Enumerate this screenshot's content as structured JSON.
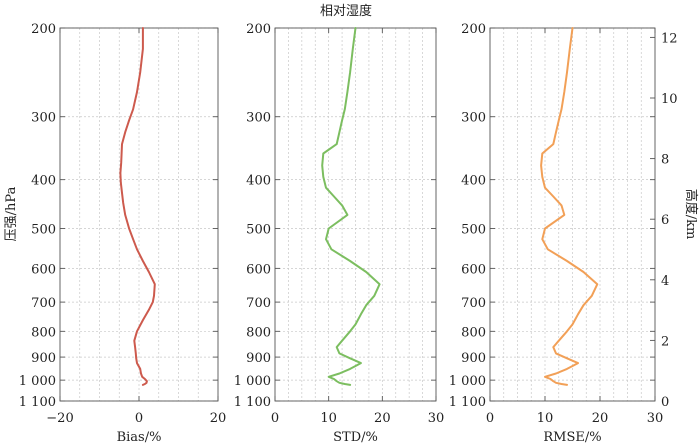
{
  "title": "相对湿度",
  "chart_data": [
    {
      "type": "line",
      "xlabel": "Bias/%",
      "ylabel": "压强/hPa",
      "xlim": [
        -20,
        20
      ],
      "xticks": [
        "−20",
        "0",
        "20"
      ],
      "yscale": "log",
      "ylim": [
        1100,
        200
      ],
      "yticks": [
        "200",
        "300",
        "400",
        "500",
        "600",
        "700",
        "800",
        "900",
        "1 000",
        "1 100"
      ],
      "grid": true,
      "color": "#cd5a4d",
      "series": [
        {
          "x": [
            1,
            1,
            0.3,
            -0.5,
            -1.5,
            -2.5,
            -3.5,
            -4.3,
            -4.4,
            -4.5,
            -4.7,
            -4.6,
            -4.3,
            -4.0,
            -3.5,
            -2.5,
            -1.5,
            -0.5,
            1,
            2.5,
            4,
            3.8,
            3.5,
            2.5,
            1,
            -0.5,
            -1.2,
            -1.0,
            -0.8,
            -0.7,
            -0.5,
            0.3,
            0.5,
            0.8,
            1.5,
            2.0,
            1.9,
            1.5,
            1.0
          ],
          "y": [
            200,
            220,
            245,
            268,
            290,
            305,
            322,
            340,
            355,
            370,
            388,
            405,
            425,
            445,
            470,
            500,
            525,
            550,
            580,
            610,
            645,
            680,
            700,
            725,
            760,
            800,
            835,
            860,
            885,
            905,
            925,
            950,
            970,
            985,
            995,
            1005,
            1012,
            1018,
            1022
          ]
        }
      ]
    },
    {
      "type": "line",
      "xlabel": "STD/%",
      "xlim": [
        0,
        30
      ],
      "xticks": [
        "0",
        "10",
        "20",
        "30"
      ],
      "yscale": "log",
      "ylim": [
        1100,
        200
      ],
      "yticks": [
        "200",
        "300",
        "400",
        "500",
        "600",
        "700",
        "800",
        "900",
        "1 000",
        "1 100"
      ],
      "grid": true,
      "color": "#7cbe60",
      "series": [
        {
          "x": [
            15,
            14.5,
            14,
            13.5,
            13,
            12.5,
            12,
            11.5,
            9,
            8.8,
            9.0,
            9.5,
            11,
            12.5,
            13.5,
            10,
            9.5,
            10.5,
            14,
            17,
            19.5,
            18.5,
            17,
            16,
            15,
            14,
            12.5,
            11.5,
            12,
            14,
            16,
            14,
            12,
            10,
            11,
            11.5,
            12,
            13,
            14
          ],
          "y": [
            200,
            220,
            245,
            268,
            290,
            305,
            322,
            340,
            355,
            375,
            395,
            415,
            432,
            450,
            470,
            500,
            525,
            550,
            580,
            610,
            645,
            680,
            710,
            740,
            775,
            800,
            835,
            860,
            885,
            905,
            925,
            950,
            970,
            985,
            995,
            1005,
            1012,
            1018,
            1022
          ]
        }
      ]
    },
    {
      "type": "line",
      "xlabel": "RMSE/%",
      "y2label": "高度/km",
      "xlim": [
        0,
        30
      ],
      "xticks": [
        "0",
        "10",
        "20",
        "30"
      ],
      "yscale": "log",
      "ylim": [
        1100,
        200
      ],
      "yticks": [
        "200",
        "300",
        "400",
        "500",
        "600",
        "700",
        "800",
        "900",
        "1 000",
        "1 100"
      ],
      "y2ticks": [
        "0",
        "2",
        "4",
        "6",
        "8",
        "10",
        "12"
      ],
      "grid": true,
      "color": "#f2a057",
      "series": [
        {
          "x": [
            15,
            14.5,
            14,
            13.5,
            13,
            12.5,
            12,
            11.5,
            9.5,
            9.3,
            9.5,
            10,
            11.5,
            13,
            13.5,
            10,
            9.5,
            10.5,
            14,
            17,
            19.5,
            18.5,
            17,
            16,
            15,
            14,
            12.5,
            11.5,
            12,
            14,
            16,
            14,
            12,
            10,
            11,
            11.5,
            12,
            13,
            14
          ],
          "y": [
            200,
            220,
            245,
            268,
            290,
            305,
            322,
            340,
            355,
            375,
            395,
            415,
            432,
            450,
            470,
            500,
            525,
            550,
            580,
            610,
            645,
            680,
            710,
            740,
            775,
            800,
            835,
            860,
            885,
            905,
            925,
            950,
            970,
            985,
            995,
            1005,
            1012,
            1018,
            1022
          ]
        }
      ]
    }
  ]
}
